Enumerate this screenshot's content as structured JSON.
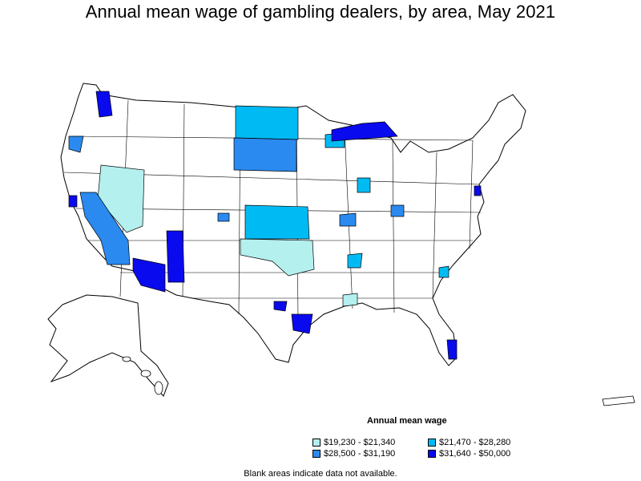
{
  "title": "Annual mean wage of gambling dealers, by area, May 2021",
  "legend": {
    "title": "Annual mean wage",
    "items": [
      {
        "label": "$19,230 - $21,340",
        "color": "#b3f0ee"
      },
      {
        "label": "$21,470 - $28,280",
        "color": "#00bbf3"
      },
      {
        "label": "$28,500 - $31,190",
        "color": "#2a8af0"
      },
      {
        "label": "$31,640 - $50,000",
        "color": "#0a0aee"
      }
    ]
  },
  "note": "Blank areas indicate data not available."
}
